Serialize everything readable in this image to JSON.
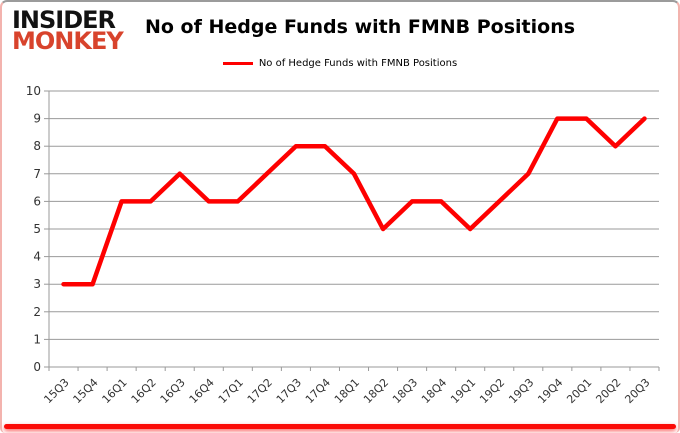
{
  "logo": {
    "top": "INSIDER",
    "bottom": "MONKEY"
  },
  "header": {
    "title": "No of Hedge Funds with FMNB Positions"
  },
  "legend": {
    "label": "No of Hedge Funds with FMNB Positions"
  },
  "chart_data": {
    "type": "line",
    "title": "No of Hedge Funds with FMNB Positions",
    "categories": [
      "15Q3",
      "15Q4",
      "16Q1",
      "16Q2",
      "16Q3",
      "16Q4",
      "17Q1",
      "17Q2",
      "17Q3",
      "17Q4",
      "18Q1",
      "18Q2",
      "18Q3",
      "18Q4",
      "19Q1",
      "19Q2",
      "19Q3",
      "19Q4",
      "20Q1",
      "20Q2",
      "20Q3"
    ],
    "series": [
      {
        "name": "No of Hedge Funds with FMNB Positions",
        "color": "#fe0000",
        "values": [
          3,
          3,
          6,
          6,
          7,
          6,
          6,
          7,
          8,
          8,
          7,
          5,
          6,
          6,
          5,
          6,
          7,
          9,
          9,
          8,
          9
        ]
      }
    ],
    "xlabel": "",
    "ylabel": "",
    "ylim": [
      0,
      10
    ],
    "ytick_interval": 1,
    "grid": true,
    "legend_position": "top-center"
  },
  "colors": {
    "line": "#fe0000",
    "grid": "#9a9a9a",
    "axis": "#9a9a9a",
    "axis_text": "#333333",
    "title_text": "#000000",
    "logo_black": "#121212",
    "logo_red": "#d8432c",
    "card_border_side": "#f3b3ae",
    "card_border_top": "#9b9b9b",
    "bottom_accent": "#fb0b07"
  }
}
